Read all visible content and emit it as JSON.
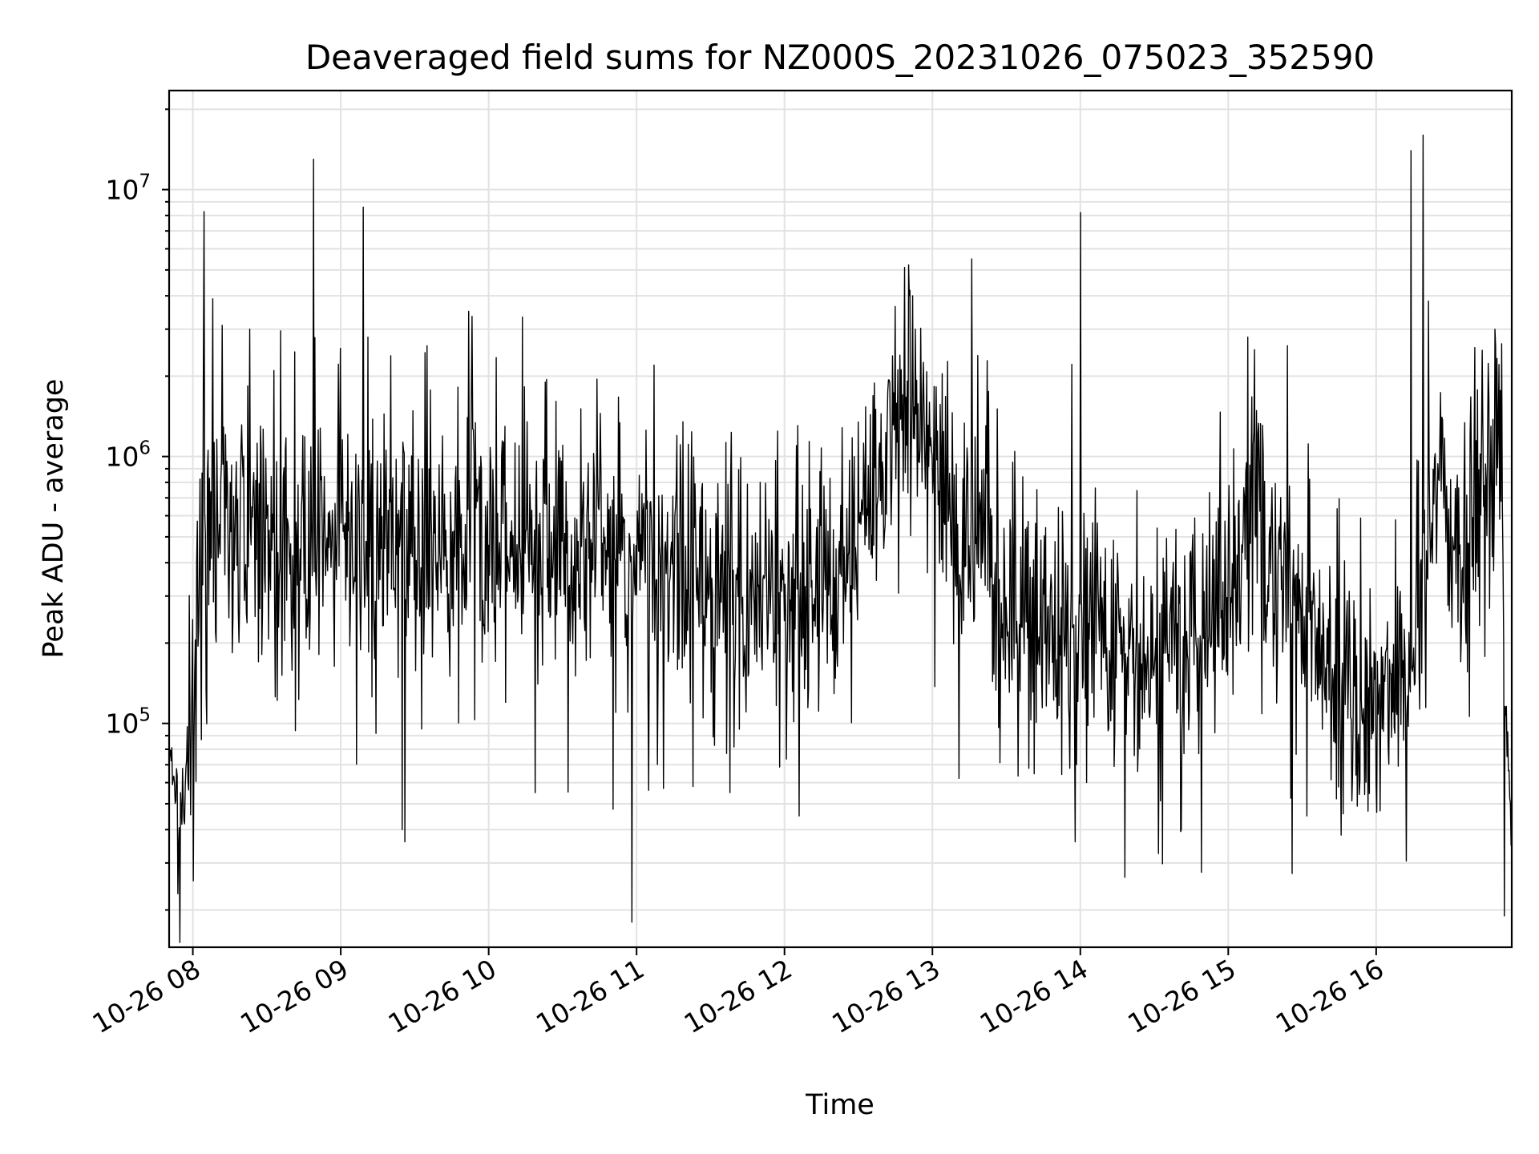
{
  "chart_data": {
    "type": "line",
    "title": "Deaveraged field sums for NZ000S_20231026_075023_352590",
    "xlabel": "Time",
    "ylabel": "Peak ADU - average",
    "yscale": "log",
    "grid": true,
    "line_color": "#000000",
    "xlim": [
      "10-26 07:50:23",
      "10-26 16:55"
    ],
    "ylim": [
      14500,
      23500000
    ],
    "xticks": [
      "10-26 08",
      "10-26 09",
      "10-26 10",
      "10-26 11",
      "10-26 12",
      "10-26 13",
      "10-26 14",
      "10-26 15",
      "10-26 16"
    ],
    "yticks": [
      {
        "base": "10",
        "exp": "5",
        "value": 100000
      },
      {
        "base": "10",
        "exp": "6",
        "value": 1000000
      },
      {
        "base": "10",
        "exp": "7",
        "value": 10000000
      }
    ],
    "series": [
      {
        "name": "",
        "baseline": [
          {
            "t": "10-26 07:50",
            "y": 90000
          },
          {
            "t": "10-26 07:55",
            "y": 38000
          },
          {
            "t": "10-26 08:00",
            "y": 130000
          },
          {
            "t": "10-26 08:05",
            "y": 700000
          },
          {
            "t": "10-26 08:20",
            "y": 500000
          },
          {
            "t": "10-26 08:40",
            "y": 450000
          },
          {
            "t": "10-26 09:00",
            "y": 500000
          },
          {
            "t": "10-26 09:30",
            "y": 480000
          },
          {
            "t": "10-26 10:00",
            "y": 500000
          },
          {
            "t": "10-26 10:30",
            "y": 450000
          },
          {
            "t": "10-26 11:00",
            "y": 430000
          },
          {
            "t": "10-26 11:30",
            "y": 340000
          },
          {
            "t": "10-26 12:00",
            "y": 290000
          },
          {
            "t": "10-26 12:20",
            "y": 420000
          },
          {
            "t": "10-26 12:40",
            "y": 950000
          },
          {
            "t": "10-26 12:50",
            "y": 1450000
          },
          {
            "t": "10-26 13:00",
            "y": 1200000
          },
          {
            "t": "10-26 13:10",
            "y": 420000
          },
          {
            "t": "10-26 13:20",
            "y": 600000
          },
          {
            "t": "10-26 13:30",
            "y": 240000
          },
          {
            "t": "10-26 14:00",
            "y": 230000
          },
          {
            "t": "10-26 14:20",
            "y": 150000
          },
          {
            "t": "10-26 14:40",
            "y": 190000
          },
          {
            "t": "10-26 15:00",
            "y": 300000
          },
          {
            "t": "10-26 15:10",
            "y": 800000
          },
          {
            "t": "10-26 15:25",
            "y": 300000
          },
          {
            "t": "10-26 15:40",
            "y": 160000
          },
          {
            "t": "10-26 16:00",
            "y": 120000
          },
          {
            "t": "10-26 16:15",
            "y": 180000
          },
          {
            "t": "10-26 16:25",
            "y": 900000
          },
          {
            "t": "10-26 16:35",
            "y": 330000
          },
          {
            "t": "10-26 16:45",
            "y": 850000
          },
          {
            "t": "10-26 16:48",
            "y": 1150000
          },
          {
            "t": "10-26 16:51",
            "y": 1100000
          },
          {
            "t": "10-26 16:52",
            "y": 130000
          },
          {
            "t": "10-26 16:55",
            "y": 40000
          }
        ],
        "peaks": [
          {
            "t": "10-26 08:08",
            "y": 3900000
          },
          {
            "t": "10-26 08:12",
            "y": 3100000
          },
          {
            "t": "10-26 08:23",
            "y": 3000000
          },
          {
            "t": "10-26 08:49",
            "y": 13000000
          },
          {
            "t": "10-26 09:09",
            "y": 8600000
          },
          {
            "t": "10-26 09:11",
            "y": 2800000
          },
          {
            "t": "10-26 09:35",
            "y": 2600000
          },
          {
            "t": "10-26 09:52",
            "y": 3500000
          },
          {
            "t": "10-26 10:23",
            "y": 1900000
          },
          {
            "t": "10-26 10:44",
            "y": 1950000
          },
          {
            "t": "10-26 11:07",
            "y": 2200000
          },
          {
            "t": "10-26 12:52",
            "y": 4000000
          },
          {
            "t": "10-26 13:16",
            "y": 5500000
          },
          {
            "t": "10-26 14:00",
            "y": 8200000
          },
          {
            "t": "10-26 15:08",
            "y": 2800000
          },
          {
            "t": "10-26 15:24",
            "y": 2600000
          },
          {
            "t": "10-26 16:14",
            "y": 14000000
          },
          {
            "t": "10-26 16:19",
            "y": 16000000
          },
          {
            "t": "10-26 16:43",
            "y": 2500000
          }
        ],
        "dips": [
          {
            "t": "10-26 07:54",
            "y": 23000
          },
          {
            "t": "10-26 09:25",
            "y": 40000
          },
          {
            "t": "10-26 09:26",
            "y": 36000
          },
          {
            "t": "10-26 10:19",
            "y": 55000
          },
          {
            "t": "10-26 10:58",
            "y": 18000
          },
          {
            "t": "10-26 11:23",
            "y": 58000
          },
          {
            "t": "10-26 11:38",
            "y": 55000
          },
          {
            "t": "10-26 12:06",
            "y": 45000
          },
          {
            "t": "10-26 13:58",
            "y": 36000
          },
          {
            "t": "10-26 14:18",
            "y": 26500
          },
          {
            "t": "10-26 14:41",
            "y": 40000
          },
          {
            "t": "10-26 15:32",
            "y": 45000
          },
          {
            "t": "10-26 16:52",
            "y": 19000
          }
        ]
      }
    ]
  }
}
